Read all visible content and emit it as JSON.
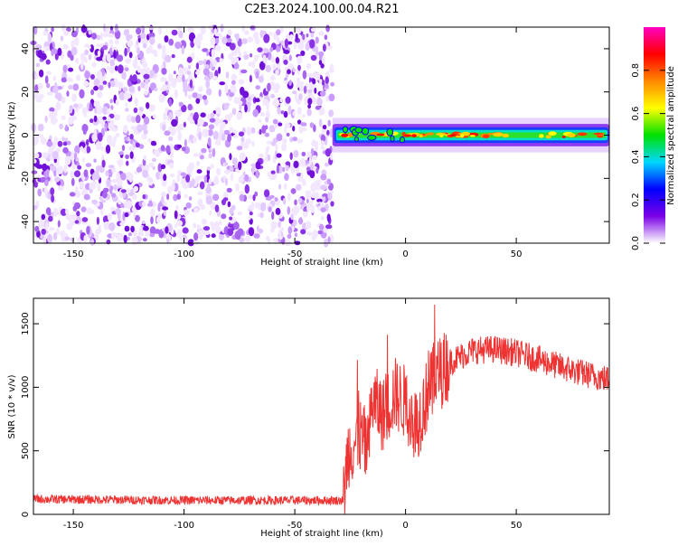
{
  "title": "C2E3.2024.100.00.04.R21",
  "chart_data": [
    {
      "type": "heatmap",
      "title": "",
      "xlabel": "Height of straight line (km)",
      "ylabel": "Frequency (Hz)",
      "xlim": [
        -168,
        92
      ],
      "ylim": [
        -50,
        50
      ],
      "xticks": [
        -150,
        -100,
        -50,
        0,
        50
      ],
      "yticks": [
        -40,
        -20,
        0,
        20,
        40
      ],
      "noise_region_x": [
        -168,
        -33
      ],
      "signal_band": {
        "x_start": -33,
        "x_end": 92,
        "center_hz": 0,
        "halfwidth_hz": 4
      },
      "grid": false,
      "colorbar": {
        "label": "Normalized spectral amplitude",
        "range": [
          0,
          1
        ],
        "ticks": [
          0.0,
          0.2,
          0.4,
          0.6,
          0.8
        ],
        "colors": [
          "#ffffff",
          "#7a00e6",
          "#0000ff",
          "#00d8ff",
          "#00e000",
          "#ffff00",
          "#ff8800",
          "#ff0000",
          "#ff00c0"
        ]
      }
    },
    {
      "type": "line",
      "title": "",
      "xlabel": "Height of straight line (km)",
      "ylabel": "SNR (10 * v/v)",
      "xlim": [
        -168,
        92
      ],
      "ylim": [
        0,
        1700
      ],
      "xticks": [
        -150,
        -100,
        -50,
        0,
        50
      ],
      "yticks": [
        0,
        500,
        1000,
        1500
      ],
      "color": "#ee3333",
      "grid": false,
      "envelope": [
        {
          "x": -168,
          "y": 120
        },
        {
          "x": -100,
          "y": 110
        },
        {
          "x": -50,
          "y": 110
        },
        {
          "x": -28,
          "y": 110
        },
        {
          "x": -26,
          "y": 500
        },
        {
          "x": -20,
          "y": 620
        },
        {
          "x": -17,
          "y": 500
        },
        {
          "x": -15,
          "y": 900
        },
        {
          "x": -10,
          "y": 780
        },
        {
          "x": -5,
          "y": 950
        },
        {
          "x": 0,
          "y": 880
        },
        {
          "x": 5,
          "y": 700
        },
        {
          "x": 10,
          "y": 950
        },
        {
          "x": 15,
          "y": 1100
        },
        {
          "x": 20,
          "y": 1200
        },
        {
          "x": 30,
          "y": 1290
        },
        {
          "x": 40,
          "y": 1300
        },
        {
          "x": 50,
          "y": 1270
        },
        {
          "x": 60,
          "y": 1220
        },
        {
          "x": 70,
          "y": 1160
        },
        {
          "x": 80,
          "y": 1110
        },
        {
          "x": 92,
          "y": 1060
        }
      ]
    }
  ]
}
